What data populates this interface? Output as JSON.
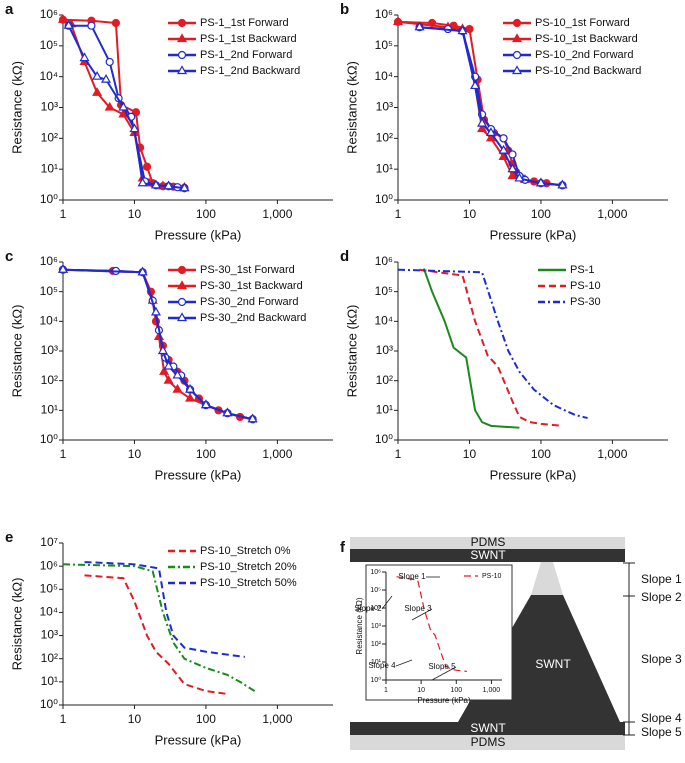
{
  "chart_data": [
    {
      "type": "line",
      "label": "a",
      "xlabel": "Pressure (kPa)",
      "ylabel": "Resistance (kΩ)",
      "xscale": "log",
      "yscale": "log",
      "legend": "upper right",
      "xlim": [
        1,
        6000
      ],
      "ylim": [
        1,
        1000000
      ],
      "xticks": [
        1,
        10,
        100,
        {
          "value": 1000,
          "label": "1,000"
        }
      ],
      "yticks": [
        {
          "value": 1,
          "label": "10⁰"
        },
        {
          "value": 10,
          "label": "10¹"
        },
        {
          "value": 100,
          "label": "10²"
        },
        {
          "value": 1000,
          "label": "10³"
        },
        {
          "value": 10000,
          "label": "10⁴"
        },
        {
          "value": 100000,
          "label": "10⁵"
        },
        {
          "value": 1000000,
          "label": "10⁶"
        }
      ],
      "series": [
        {
          "name": "PS-1_1st Forward",
          "color": "#e31b23",
          "marker": "circle",
          "dash": "solid",
          "x": [
            1,
            2.5,
            5.5,
            6.5,
            10.5,
            12,
            15,
            18,
            25,
            35,
            50
          ],
          "values": [
            700000,
            650000,
            550000,
            1200,
            700,
            50,
            12,
            3.5,
            2.8,
            2.7,
            2.5
          ]
        },
        {
          "name": "PS-1_1st Backward",
          "color": "#e31b23",
          "marker": "triangle",
          "dash": "solid",
          "x": [
            1,
            1.3,
            2,
            3,
            4.5,
            7,
            10,
            13,
            16,
            25,
            50
          ],
          "values": [
            700000,
            500000,
            30000,
            3000,
            1000,
            600,
            150,
            5,
            3.5,
            2.8,
            2.5
          ]
        },
        {
          "name": "PS-1_2nd Forward",
          "color": "#1f2bd0",
          "marker": "circle-open",
          "dash": "solid",
          "x": [
            1.2,
            2.5,
            4.5,
            6,
            9,
            14,
            20,
            30,
            40,
            50
          ],
          "values": [
            450000,
            450000,
            30000,
            2000,
            500,
            4,
            3,
            2.8,
            2.6,
            2.4
          ]
        },
        {
          "name": "PS-1_2nd Backward",
          "color": "#1f2bd0",
          "marker": "triangle-open",
          "dash": "solid",
          "x": [
            1.2,
            2,
            3,
            4,
            7,
            10,
            13,
            20,
            30,
            50
          ],
          "values": [
            450000,
            40000,
            10000,
            8000,
            1000,
            200,
            3.5,
            3,
            2.8,
            2.4
          ]
        }
      ]
    },
    {
      "type": "line",
      "label": "b",
      "xlabel": "Pressure (kPa)",
      "ylabel": "Resistance (kΩ)",
      "xscale": "log",
      "yscale": "log",
      "legend": "upper right",
      "xlim": [
        1,
        6000
      ],
      "ylim": [
        1,
        1000000
      ],
      "xticks": [
        1,
        10,
        100,
        {
          "value": 1000,
          "label": "1,000"
        }
      ],
      "yticks": [
        {
          "value": 1,
          "label": "10⁰"
        },
        {
          "value": 10,
          "label": "10¹"
        },
        {
          "value": 100,
          "label": "10²"
        },
        {
          "value": 1000,
          "label": "10³"
        },
        {
          "value": 10000,
          "label": "10⁴"
        },
        {
          "value": 100000,
          "label": "10⁵"
        },
        {
          "value": 1000000,
          "label": "10⁶"
        }
      ],
      "series": [
        {
          "name": "PS-10_1st Forward",
          "color": "#e31b23",
          "marker": "circle",
          "dash": "solid",
          "x": [
            1,
            3,
            6,
            10,
            13,
            16,
            22,
            30,
            35,
            40,
            45,
            55,
            80,
            120,
            200
          ],
          "values": [
            600000,
            550000,
            450000,
            350000,
            8000,
            400,
            150,
            100,
            40,
            15,
            8,
            5,
            4,
            3.5,
            3
          ]
        },
        {
          "name": "PS-10_1st Backward",
          "color": "#e31b23",
          "marker": "triangle",
          "dash": "solid",
          "x": [
            1,
            5,
            8,
            12,
            15,
            20,
            30,
            40,
            60,
            100,
            200
          ],
          "values": [
            600000,
            400000,
            350000,
            5000,
            200,
            100,
            25,
            6,
            4.5,
            3.5,
            3
          ]
        },
        {
          "name": "PS-10_2nd Forward",
          "color": "#1f2bd0",
          "marker": "circle-open",
          "dash": "solid",
          "x": [
            2,
            5,
            8,
            12,
            15,
            20,
            30,
            40,
            50,
            60,
            100,
            200
          ],
          "values": [
            400000,
            350000,
            300000,
            10000,
            600,
            200,
            100,
            30,
            6,
            4.5,
            3.5,
            3
          ]
        },
        {
          "name": "PS-10_2nd Backward",
          "color": "#1f2bd0",
          "marker": "triangle-open",
          "dash": "solid",
          "x": [
            2,
            8,
            12,
            15,
            20,
            30,
            40,
            50,
            100,
            200
          ],
          "values": [
            400000,
            300000,
            5000,
            300,
            150,
            40,
            10,
            5,
            3.5,
            3
          ]
        }
      ]
    },
    {
      "type": "line",
      "label": "c",
      "xlabel": "Pressure (kPa)",
      "ylabel": "Resistance (kΩ)",
      "xscale": "log",
      "yscale": "log",
      "legend": "upper right",
      "xlim": [
        1,
        6000
      ],
      "ylim": [
        1,
        1000000
      ],
      "xticks": [
        1,
        10,
        100,
        {
          "value": 1000,
          "label": "1,000"
        }
      ],
      "yticks": [
        {
          "value": 1,
          "label": "10⁰"
        },
        {
          "value": 10,
          "label": "10¹"
        },
        {
          "value": 100,
          "label": "10²"
        },
        {
          "value": 1000,
          "label": "10³"
        },
        {
          "value": 10000,
          "label": "10⁴"
        },
        {
          "value": 100000,
          "label": "10⁵"
        },
        {
          "value": 1000000,
          "label": "10⁶"
        }
      ],
      "series": [
        {
          "name": "PS-30_1st Forward",
          "color": "#e31b23",
          "marker": "circle",
          "dash": "solid",
          "x": [
            1,
            5,
            13,
            17,
            20,
            25,
            30,
            40,
            50,
            60,
            80,
            100,
            150,
            200,
            300,
            450
          ],
          "values": [
            550000,
            500000,
            450000,
            100000,
            10000,
            1500,
            500,
            200,
            100,
            50,
            25,
            15,
            10,
            8,
            6,
            5
          ]
        },
        {
          "name": "PS-30_1st Backward",
          "color": "#e31b23",
          "marker": "triangle",
          "dash": "solid",
          "x": [
            1,
            13,
            18,
            22,
            26,
            30,
            40,
            60,
            100,
            200,
            450
          ],
          "values": [
            550000,
            450000,
            50000,
            3000,
            200,
            100,
            50,
            25,
            15,
            8,
            5
          ]
        },
        {
          "name": "PS-30_2nd Forward",
          "color": "#1f2bd0",
          "marker": "circle-open",
          "dash": "solid",
          "x": [
            1,
            5.5,
            13,
            18,
            22,
            27,
            35,
            45,
            60,
            100,
            200,
            450
          ],
          "values": [
            550000,
            500000,
            450000,
            50000,
            5000,
            600,
            300,
            150,
            50,
            15,
            8,
            5
          ]
        },
        {
          "name": "PS-30_2nd Backward",
          "color": "#1f2bd0",
          "marker": "triangle-open",
          "dash": "solid",
          "x": [
            1,
            13,
            20,
            25,
            30,
            40,
            60,
            100,
            200,
            450
          ],
          "values": [
            550000,
            450000,
            20000,
            1000,
            300,
            150,
            50,
            15,
            8,
            5
          ]
        }
      ]
    },
    {
      "type": "line",
      "label": "d",
      "xlabel": "Pressure (kPa)",
      "ylabel": "Resistance (kΩ)",
      "xscale": "log",
      "yscale": "log",
      "legend": "upper right",
      "xlim": [
        1,
        6000
      ],
      "ylim": [
        1,
        1000000
      ],
      "xticks": [
        1,
        10,
        100,
        {
          "value": 1000,
          "label": "1,000"
        }
      ],
      "yticks": [
        {
          "value": 1,
          "label": "10⁰"
        },
        {
          "value": 10,
          "label": "10¹"
        },
        {
          "value": 100,
          "label": "10²"
        },
        {
          "value": 1000,
          "label": "10³"
        },
        {
          "value": 10000,
          "label": "10⁴"
        },
        {
          "value": 100000,
          "label": "10⁵"
        },
        {
          "value": 1000000,
          "label": "10⁶"
        }
      ],
      "series": [
        {
          "name": "PS-1",
          "color": "#1a8a1a",
          "marker": "none",
          "dash": "solid",
          "x": [
            2.3,
            3,
            4.5,
            6,
            9,
            12,
            15,
            20,
            30,
            50
          ],
          "values": [
            600000,
            100000,
            10000,
            1300,
            600,
            10,
            4,
            3,
            2.8,
            2.6
          ]
        },
        {
          "name": "PS-10",
          "color": "#e31b23",
          "marker": "none",
          "dash": "dashed",
          "x": [
            2,
            8,
            12,
            18,
            25,
            40,
            50,
            70,
            100,
            200
          ],
          "values": [
            550000,
            350000,
            10000,
            700,
            300,
            20,
            6,
            4,
            3.5,
            3
          ]
        },
        {
          "name": "PS-30",
          "color": "#1f2bd0",
          "marker": "none",
          "dash": "dashdot",
          "x": [
            1,
            15,
            25,
            35,
            50,
            80,
            150,
            300,
            450
          ],
          "values": [
            550000,
            450000,
            10000,
            1000,
            200,
            50,
            15,
            7,
            5.5
          ]
        }
      ]
    },
    {
      "type": "line",
      "label": "e",
      "xlabel": "Pressure (kPa)",
      "ylabel": "Resistance (kΩ)",
      "xscale": "log",
      "yscale": "log",
      "legend": "upper right",
      "xlim": [
        1,
        6000
      ],
      "ylim": [
        1,
        10000000
      ],
      "xticks": [
        1,
        10,
        100,
        {
          "value": 1000,
          "label": "1,000"
        }
      ],
      "yticks": [
        {
          "value": 1,
          "label": "10⁰"
        },
        {
          "value": 10,
          "label": "10¹"
        },
        {
          "value": 100,
          "label": "10²"
        },
        {
          "value": 1000,
          "label": "10³"
        },
        {
          "value": 10000,
          "label": "10⁴"
        },
        {
          "value": 100000,
          "label": "10⁵"
        },
        {
          "value": 1000000,
          "label": "10⁶"
        },
        {
          "value": 10000000,
          "label": "10⁷"
        }
      ],
      "series": [
        {
          "name": "PS-10_Stretch 0%",
          "color": "#e31b23",
          "marker": "none",
          "dash": "dashed",
          "x": [
            2,
            7,
            10,
            15,
            20,
            30,
            50,
            100,
            200
          ],
          "values": [
            400000,
            300000,
            30000,
            1000,
            200,
            60,
            8,
            4,
            3
          ]
        },
        {
          "name": "PS-10_Stretch 20%",
          "color": "#1a8a1a",
          "marker": "none",
          "dash": "dashdot",
          "x": [
            1,
            10,
            18,
            25,
            35,
            50,
            100,
            200,
            300,
            480
          ],
          "values": [
            1200000,
            1000000,
            600000,
            10000,
            500,
            100,
            40,
            20,
            10,
            4
          ]
        },
        {
          "name": "PS-10_Stretch 50%",
          "color": "#1f2bd0",
          "marker": "none",
          "dash": "dashed",
          "x": [
            2,
            10,
            22,
            28,
            35,
            50,
            100,
            200,
            350
          ],
          "values": [
            1500000,
            1200000,
            800000,
            10000,
            1000,
            300,
            200,
            150,
            120
          ]
        }
      ]
    },
    {
      "type": "line",
      "xlabel": "Pressure (kPa)",
      "ylabel": "Resistance (kΩ)",
      "xscale": "log",
      "yscale": "log",
      "legend": "upper right",
      "xlim": [
        1,
        2000
      ],
      "ylim": [
        1,
        1000000
      ],
      "xticks": [
        1,
        10,
        100,
        {
          "value": 1000,
          "label": "1,000"
        }
      ],
      "yticks": [
        {
          "value": 1,
          "label": "10⁰"
        },
        {
          "value": 10,
          "label": "10¹"
        },
        {
          "value": 100,
          "label": "10²"
        },
        {
          "value": 1000,
          "label": "10³"
        },
        {
          "value": 10000,
          "label": "10⁴"
        },
        {
          "value": 100000,
          "label": "10⁵"
        },
        {
          "value": 1000000,
          "label": "10⁶"
        }
      ],
      "annotations": [
        "Slope 1",
        "Slope 2",
        "Slope 3",
        "Slope 4",
        "Slope 5"
      ],
      "series": [
        {
          "name": "PS-10",
          "color": "#e31b23",
          "marker": "none",
          "dash": "dashed",
          "x": [
            2,
            8,
            12,
            18,
            25,
            40,
            50,
            70,
            100,
            200
          ],
          "values": [
            550000,
            350000,
            10000,
            700,
            300,
            20,
            6,
            4,
            3.5,
            3
          ]
        }
      ]
    }
  ],
  "diagram": {
    "label": "f",
    "layers": [
      "PDMS",
      "SWNT",
      "SWNT",
      "SWNT",
      "PDMS"
    ],
    "slopes": [
      "Slope 1",
      "Slope 2",
      "Slope 3",
      "Slope 4",
      "Slope 5"
    ]
  }
}
